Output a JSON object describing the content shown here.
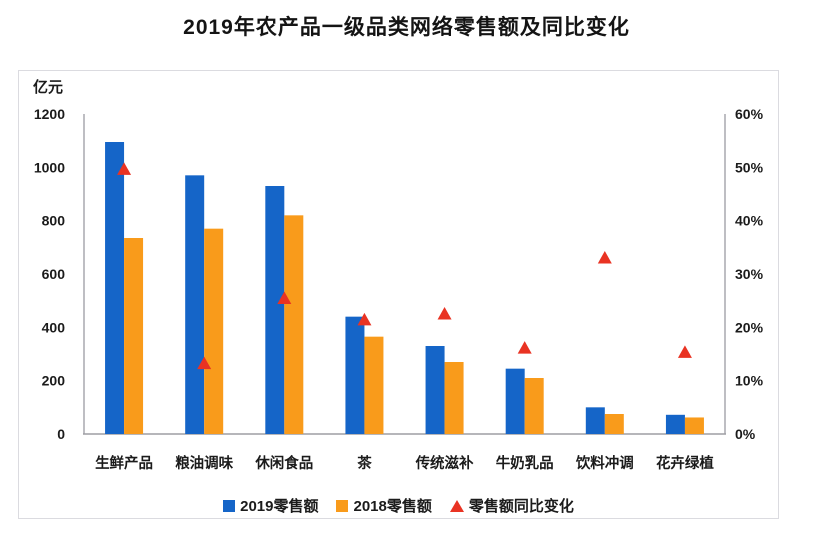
{
  "page": {
    "title": "2019年农产品一级品类网络零售额及同比变化"
  },
  "colors": {
    "bar_2019": "#1565c8",
    "bar_2018": "#f99b1b",
    "growth_marker": "#e93323",
    "axis_line": "#aeaeb4",
    "panel_border": "#dbdbe0",
    "text": "#1b1b1b"
  },
  "chart_data": {
    "type": "bar",
    "subtype": "grouped-bars-with-scatter-triangles",
    "title": "2019年农产品一级品类网络零售额及同比变化",
    "grid": false,
    "legend_position": "bottom",
    "unit_label": "亿元",
    "categories": [
      "生鲜产品",
      "粮油调味",
      "休闲食品",
      "茶",
      "传统滋补",
      "牛奶乳品",
      "饮料冲调",
      "花卉绿植"
    ],
    "series": [
      {
        "name": "2019零售额",
        "type": "bar",
        "axis": "left",
        "color": "#1565c8",
        "values": [
          1095,
          970,
          930,
          440,
          330,
          245,
          100,
          72
        ]
      },
      {
        "name": "2018零售额",
        "type": "bar",
        "axis": "left",
        "color": "#f99b1b",
        "values": [
          735,
          770,
          820,
          365,
          270,
          210,
          75,
          62
        ]
      },
      {
        "name": "零售额同比变化",
        "type": "scatter",
        "marker": "triangle",
        "axis": "right",
        "color": "#e93323",
        "values_percent": [
          49.7,
          13.3,
          25.5,
          21.5,
          22.6,
          16.2,
          33.1,
          15.4
        ]
      }
    ],
    "left_axis": {
      "label": "亿元",
      "min": 0,
      "max": 1200,
      "tick_step": 200,
      "tick_labels": [
        "1200",
        "1000",
        "800",
        "600",
        "400",
        "200",
        "0"
      ]
    },
    "right_axis": {
      "min": 0,
      "max": 60,
      "tick_step": 10,
      "tick_labels": [
        "60%",
        "50%",
        "40%",
        "30%",
        "20%",
        "10%",
        "0%"
      ]
    }
  }
}
